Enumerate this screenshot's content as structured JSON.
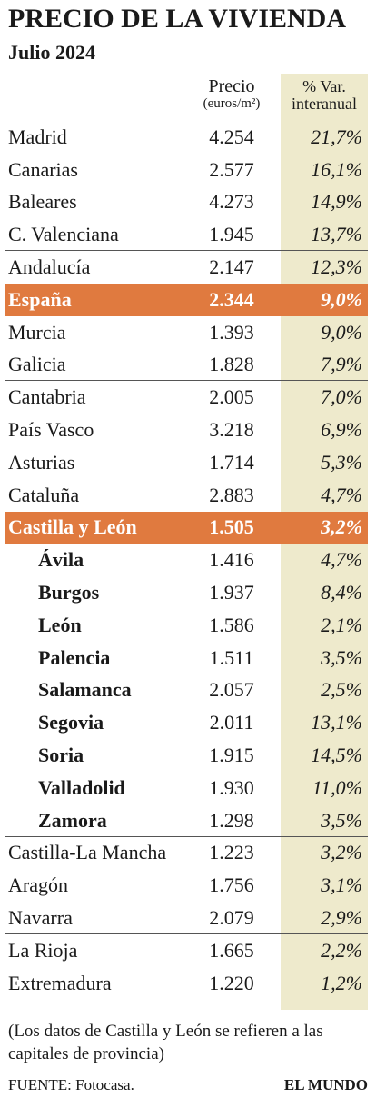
{
  "header": {
    "title": "PRECIO DE LA VIVIENDA",
    "subtitle": "Julio 2024"
  },
  "columns": {
    "price_label": "Precio",
    "price_unit": "(euros/m²)",
    "var_label_1": "% Var.",
    "var_label_2": "interanual"
  },
  "chart_data": {
    "type": "table",
    "title": "PRECIO DE LA VIVIENDA",
    "subtitle": "Julio 2024",
    "columns": [
      "Precio (euros/m²)",
      "% Var. interanual"
    ],
    "rows": [
      {
        "name": "Madrid",
        "price": "4.254",
        "var": "21,7%",
        "group": 1
      },
      {
        "name": "Canarias",
        "price": "2.577",
        "var": "16,1%",
        "group": 1
      },
      {
        "name": "Baleares",
        "price": "4.273",
        "var": "14,9%",
        "group": 1
      },
      {
        "name": "C. Valenciana",
        "price": "1.945",
        "var": "13,7%",
        "group": 1
      },
      {
        "name": "Andalucía",
        "price": "2.147",
        "var": "12,3%",
        "group": 2
      },
      {
        "name": "España",
        "price": "2.344",
        "var": "9,0%",
        "group": 2,
        "highlight": true
      },
      {
        "name": "Murcia",
        "price": "1.393",
        "var": "9,0%",
        "group": 2
      },
      {
        "name": "Galicia",
        "price": "1.828",
        "var": "7,9%",
        "group": 2
      },
      {
        "name": "Cantabria",
        "price": "2.005",
        "var": "7,0%",
        "group": 3
      },
      {
        "name": "País Vasco",
        "price": "3.218",
        "var": "6,9%",
        "group": 3
      },
      {
        "name": "Asturias",
        "price": "1.714",
        "var": "5,3%",
        "group": 3
      },
      {
        "name": "Cataluña",
        "price": "2.883",
        "var": "4,7%",
        "group": 3
      },
      {
        "name": "Castilla y León",
        "price": "1.505",
        "var": "3,2%",
        "group": 3,
        "highlight": true
      },
      {
        "name": "Ávila",
        "price": "1.416",
        "var": "4,7%",
        "group": 3,
        "sub": true
      },
      {
        "name": "Burgos",
        "price": "1.937",
        "var": "8,4%",
        "group": 3,
        "sub": true
      },
      {
        "name": "León",
        "price": "1.586",
        "var": "2,1%",
        "group": 3,
        "sub": true
      },
      {
        "name": "Palencia",
        "price": "1.511",
        "var": "3,5%",
        "group": 3,
        "sub": true
      },
      {
        "name": "Salamanca",
        "price": "2.057",
        "var": "2,5%",
        "group": 3,
        "sub": true
      },
      {
        "name": "Segovia",
        "price": "2.011",
        "var": "13,1%",
        "group": 3,
        "sub": true
      },
      {
        "name": "Soria",
        "price": "1.915",
        "var": "14,5%",
        "group": 3,
        "sub": true
      },
      {
        "name": "Valladolid",
        "price": "1.930",
        "var": "11,0%",
        "group": 3,
        "sub": true
      },
      {
        "name": "Zamora",
        "price": "1.298",
        "var": "3,5%",
        "group": 3,
        "sub": true
      },
      {
        "name": "Castilla-La Mancha",
        "price": "1.223",
        "var": "3,2%",
        "group": 4
      },
      {
        "name": "Aragón",
        "price": "1.756",
        "var": "3,1%",
        "group": 4
      },
      {
        "name": "Navarra",
        "price": "2.079",
        "var": "2,9%",
        "group": 4
      },
      {
        "name": "La Rioja",
        "price": "1.665",
        "var": "2,2%",
        "group": 5
      },
      {
        "name": "Extremadura",
        "price": "1.220",
        "var": "1,2%",
        "group": 5
      }
    ]
  },
  "colors": {
    "highlight": "#e07a3f",
    "shade": "#eeeacc"
  },
  "footer": {
    "note": "(Los datos de Castilla y León se refieren a las capitales de provincia)",
    "source": "FUENTE: Fotocasa.",
    "brand": "EL MUNDO"
  }
}
